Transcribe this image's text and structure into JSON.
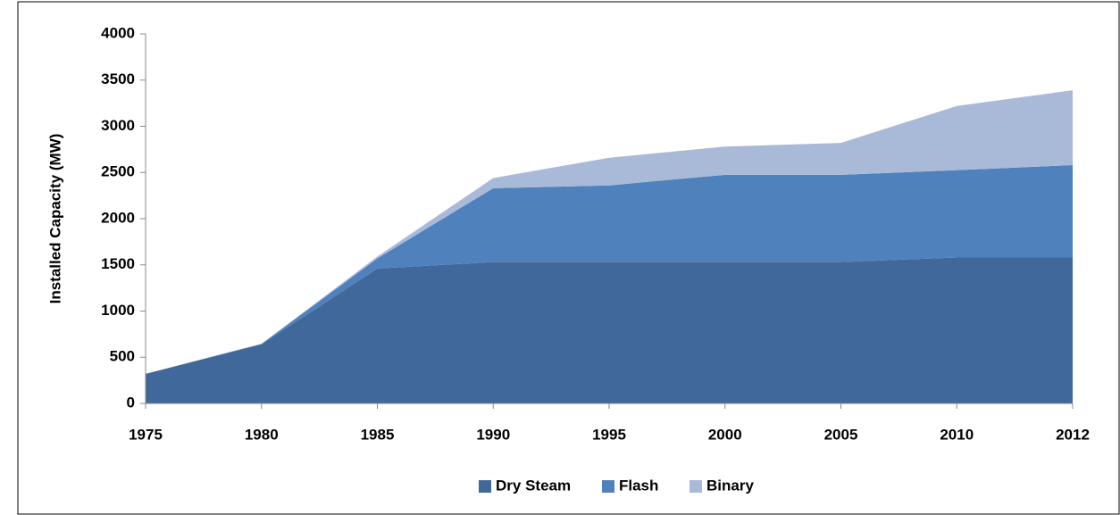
{
  "chart_data": {
    "type": "stacked_area",
    "y_label": "Installed Capacity (MW)",
    "categories": [
      "1975",
      "1980",
      "1985",
      "1990",
      "1995",
      "2000",
      "2005",
      "2010",
      "2012"
    ],
    "series": [
      {
        "name": "Dry Steam",
        "color": "#41689a",
        "values": [
          320,
          640,
          1460,
          1530,
          1530,
          1530,
          1530,
          1580,
          1580
        ]
      },
      {
        "name": "Flash",
        "color": "#4f81bd",
        "values": [
          0,
          5,
          110,
          800,
          830,
          945,
          945,
          945,
          1000
        ]
      },
      {
        "name": "Binary",
        "color": "#a9b9d8",
        "values": [
          0,
          0,
          20,
          110,
          300,
          305,
          345,
          695,
          810
        ]
      }
    ],
    "ylim": [
      0,
      4000
    ],
    "yticks": [
      0,
      500,
      1000,
      1500,
      2000,
      2500,
      3000,
      3500,
      4000
    ],
    "grid": false,
    "legend": "bottom"
  }
}
